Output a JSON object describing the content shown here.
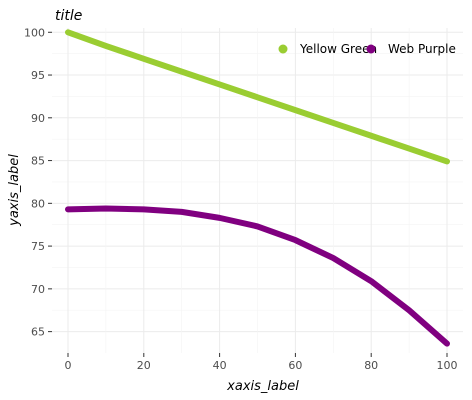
{
  "chart_data": {
    "type": "line",
    "title": "title",
    "xlabel": "xaxis_label",
    "ylabel": "yaxis_label",
    "xlim": [
      0,
      100
    ],
    "ylim": [
      62.5,
      100.5
    ],
    "x_ticks": [
      0,
      20,
      40,
      60,
      80,
      100
    ],
    "x_tick_labels": [
      "0",
      "20",
      "40",
      "60",
      "80",
      "100"
    ],
    "y_ticks": [
      65,
      70,
      75,
      80,
      85,
      90,
      95,
      100
    ],
    "y_tick_labels": [
      "65",
      "70",
      "75",
      "80",
      "85",
      "90",
      "95",
      "100"
    ],
    "grid": true,
    "legend_position": "top-right",
    "series": [
      {
        "name": "Yellow Green",
        "color": "#9acd32",
        "x": [
          0,
          10,
          20,
          30,
          40,
          50,
          60,
          70,
          80,
          90,
          100
        ],
        "y": [
          100,
          98.4,
          96.9,
          95.4,
          93.9,
          92.4,
          90.9,
          89.4,
          87.9,
          86.4,
          84.9
        ]
      },
      {
        "name": "Web Purple",
        "color": "#800080",
        "x": [
          0,
          10,
          20,
          30,
          40,
          50,
          60,
          70,
          80,
          90,
          100
        ],
        "y": [
          79.3,
          79.4,
          79.3,
          79.0,
          78.3,
          77.3,
          75.7,
          73.6,
          70.9,
          67.5,
          63.6
        ]
      }
    ]
  }
}
